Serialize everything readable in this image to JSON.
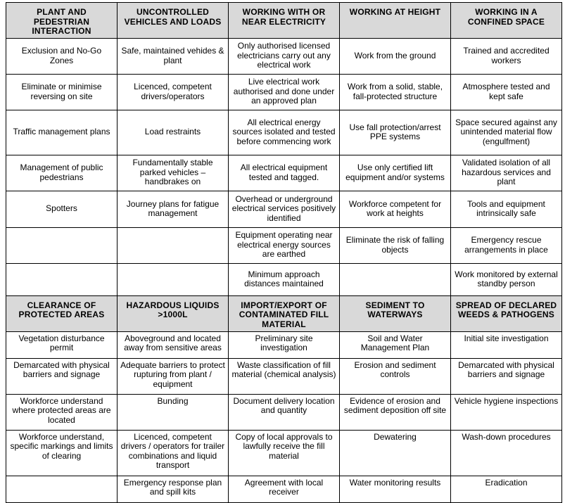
{
  "sections": [
    {
      "headers": [
        "PLANT AND PEDESTRIAN INTERACTION",
        "UNCONTROLLED VEHICLES AND LOADS",
        "WORKING WITH OR NEAR ELECTRICITY",
        "WORKING AT HEIGHT",
        "WORKING IN A CONFINED SPACE"
      ],
      "rows": [
        [
          "Exclusion and No-Go Zones",
          "Safe, maintained vehides & plant",
          "Only authorised licensed electricians carry out any electrical work",
          "Work from the ground",
          "Trained and accredited workers"
        ],
        [
          "Eliminate or minimise reversing on site",
          "Licenced, competent drivers/operators",
          "Live electrical work authorised and done under an approved plan",
          "Work from a solid, stable, fall-protected structure",
          "Atmosphere tested and kept safe"
        ],
        [
          "Traffic management plans",
          "Load restraints",
          "All electrical energy sources isolated and tested before commencing work",
          "Use fall protection/arrest PPE systems",
          "Space secured against any unintended material flow (engulfment)"
        ],
        [
          "Management of public pedestrians",
          "Fundamentally stable parked vehicles – handbrakes on",
          "All electrical equipment tested and tagged.",
          "Use only certified lift equipment and/or systems",
          "Validated isolation of all hazardous services and plant"
        ],
        [
          "Spotters",
          "Journey plans for fatigue management",
          "Overhead or underground electrical services positively identified",
          "Workforce competent for work at heights",
          "Tools and equipment intrinsically safe"
        ],
        [
          "",
          "",
          "Equipment operating near electrical energy sources are earthed",
          "Eliminate the risk of falling objects",
          "Emergency rescue arrangements in place"
        ],
        [
          "",
          "",
          "Minimum approach distances maintained",
          "",
          "Work monitored by external standby person"
        ]
      ]
    },
    {
      "headers": [
        "CLEARANCE OF PROTECTED AREAS",
        "HAZARDOUS LIQUIDS >1000L",
        "IMPORT/EXPORT OF CONTAMINATED FILL MATERIAL",
        "SEDIMENT TO WATERWAYS",
        "SPREAD OF DECLARED WEEDS & PATHOGENS"
      ],
      "rows": [
        [
          "Vegetation disturbance permit",
          "Aboveground and located away from sensitive areas",
          "Preliminary site investigation",
          "Soil and Water Management Plan",
          "Initial site investigation"
        ],
        [
          "Demarcated with physical barriers and signage",
          "Adequate barriers to protect rupturing from plant / equipment",
          "Waste classification of fill material (chemical analysis)",
          "Erosion and sediment controls",
          "Demarcated with physical barriers and signage"
        ],
        [
          "Workforce understand where protected areas are located",
          "Bunding",
          "Document delivery location and quantity",
          "Evidence of erosion and sediment deposition off site",
          "Vehicle hygiene inspections"
        ],
        [
          "Workforce understand, specific markings and limits of clearing",
          "Licenced, competent drivers / operators for trailer combinations and liquid transport",
          "Copy of local approvals to lawfully receive the fill material",
          "Dewatering",
          "Wash-down procedures"
        ],
        [
          "",
          "Emergency response plan and spill kits",
          "Agreement with local receiver",
          "Water monitoring results",
          "Eradication"
        ]
      ]
    }
  ],
  "colors": {
    "header_bg": "#d9d9d9",
    "border": "#000000"
  }
}
